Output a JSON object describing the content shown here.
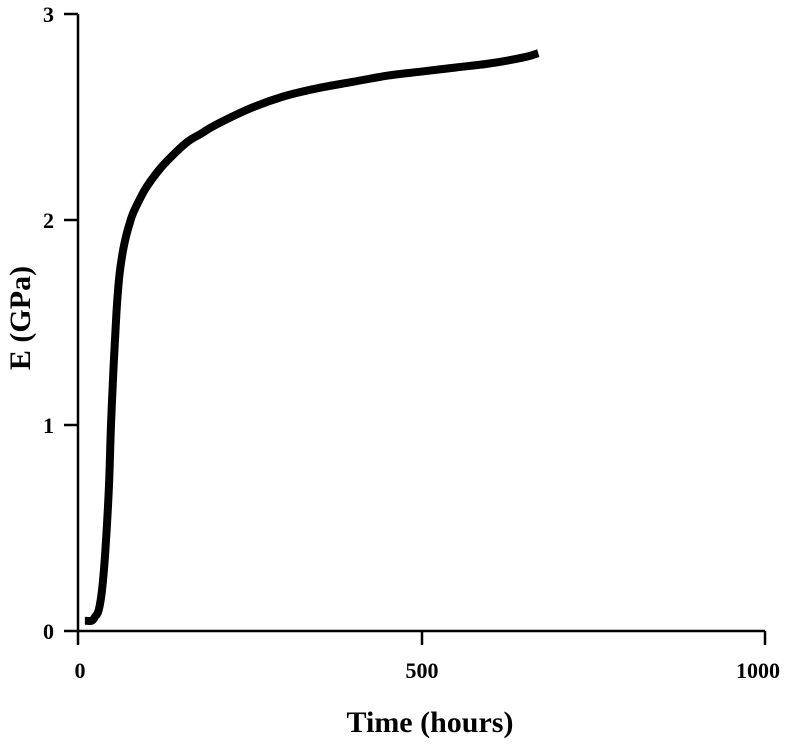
{
  "chart_data": {
    "type": "line",
    "title": "",
    "xlabel": "Time (hours)",
    "ylabel": "E (GPa)",
    "xlim": [
      0,
      1000
    ],
    "ylim": [
      0,
      3
    ],
    "xticks": [
      0,
      500,
      1000
    ],
    "yticks": [
      0,
      1,
      2,
      3
    ],
    "xtick_labels": [
      "0",
      "500",
      "1000"
    ],
    "ytick_labels": [
      "0",
      "1",
      "2",
      "3"
    ],
    "grid": false,
    "legend": "none",
    "series": [
      {
        "color": "#000000",
        "x": [
          10,
          20,
          25,
          30,
          35,
          40,
          45,
          48,
          52,
          56,
          60,
          65,
          70,
          75,
          80,
          90,
          100,
          120,
          140,
          160,
          180,
          200,
          250,
          300,
          350,
          400,
          450,
          500,
          550,
          600,
          650,
          670
        ],
        "y": [
          0.05,
          0.05,
          0.07,
          0.1,
          0.2,
          0.4,
          0.7,
          1.0,
          1.3,
          1.55,
          1.72,
          1.84,
          1.92,
          1.98,
          2.03,
          2.1,
          2.16,
          2.25,
          2.32,
          2.38,
          2.42,
          2.46,
          2.54,
          2.6,
          2.64,
          2.67,
          2.7,
          2.72,
          2.74,
          2.76,
          2.79,
          2.81
        ]
      }
    ]
  }
}
